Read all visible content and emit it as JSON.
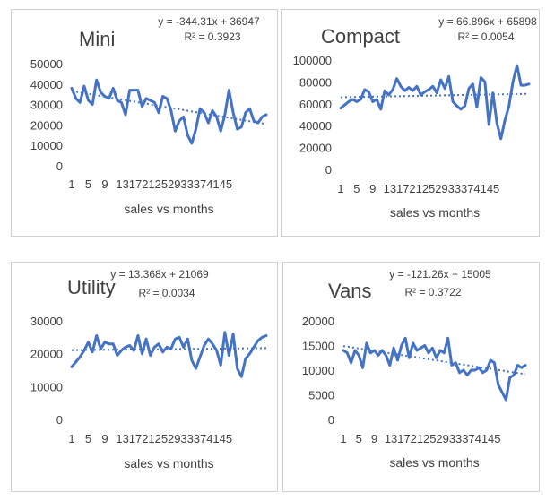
{
  "chart_data": [
    {
      "type": "line",
      "title": "Mini",
      "xlabel": "sales vs months",
      "ylabel": "",
      "ylim": [
        0,
        50000
      ],
      "yticks": [
        "0",
        "10000",
        "20000",
        "30000",
        "40000",
        "50000"
      ],
      "xticks": [
        "1",
        "5",
        "9",
        "13",
        "17",
        "21",
        "25",
        "29",
        "33",
        "37",
        "41",
        "45"
      ],
      "trendline": {
        "type": "linear",
        "style": "dotted",
        "equation": "y = -344.31x + 36947",
        "r2": "R² = 0.3923",
        "slope": -344.31,
        "intercept": 36947
      },
      "grid": false,
      "series": [
        {
          "color": "#4472c4",
          "x": [
            1,
            2,
            3,
            4,
            5,
            6,
            7,
            8,
            9,
            10,
            11,
            12,
            13,
            14,
            15,
            16,
            17,
            18,
            19,
            20,
            21,
            22,
            23,
            24,
            25,
            26,
            27,
            28,
            29,
            30,
            31,
            32,
            33,
            34,
            35,
            36,
            37,
            38,
            39,
            40,
            41,
            42,
            43,
            44,
            45,
            46,
            47,
            48
          ],
          "values": [
            38000,
            33000,
            31000,
            39000,
            32000,
            30000,
            42000,
            36000,
            34000,
            33000,
            38000,
            32000,
            31000,
            25000,
            37000,
            37000,
            37000,
            29000,
            33000,
            32000,
            31000,
            26000,
            34000,
            33000,
            27000,
            17000,
            22000,
            24000,
            15000,
            11000,
            18000,
            28000,
            26000,
            21000,
            27000,
            24000,
            17000,
            25000,
            37000,
            26000,
            18000,
            19000,
            26000,
            28000,
            22000,
            21000,
            24000,
            25000
          ]
        }
      ]
    },
    {
      "type": "line",
      "title": "Compact",
      "xlabel": "sales vs months",
      "ylabel": "",
      "ylim": [
        0,
        100000
      ],
      "yticks": [
        "0",
        "20000",
        "40000",
        "60000",
        "80000",
        "100000"
      ],
      "xticks": [
        "1",
        "5",
        "9",
        "13",
        "17",
        "21",
        "25",
        "29",
        "33",
        "37",
        "41",
        "45"
      ],
      "trendline": {
        "type": "linear",
        "style": "dotted",
        "equation": "y = 66.896x + 65898",
        "r2": "R² = 0.0054",
        "slope": 66.896,
        "intercept": 65898
      },
      "grid": false,
      "series": [
        {
          "color": "#4472c4",
          "x": [
            1,
            2,
            3,
            4,
            5,
            6,
            7,
            8,
            9,
            10,
            11,
            12,
            13,
            14,
            15,
            16,
            17,
            18,
            19,
            20,
            21,
            22,
            23,
            24,
            25,
            26,
            27,
            28,
            29,
            30,
            31,
            32,
            33,
            34,
            35,
            36,
            37,
            38,
            39,
            40,
            41,
            42,
            43,
            44,
            45,
            46,
            47,
            48
          ],
          "values": [
            56000,
            59000,
            62000,
            64000,
            62000,
            64000,
            73000,
            71000,
            62000,
            64000,
            55000,
            72000,
            68000,
            73000,
            83000,
            76000,
            72000,
            75000,
            72000,
            76000,
            68000,
            71000,
            73000,
            76000,
            70000,
            82000,
            74000,
            85000,
            62000,
            58000,
            55000,
            58000,
            74000,
            78000,
            57000,
            84000,
            80000,
            41000,
            70000,
            42000,
            28000,
            45000,
            58000,
            80000,
            95000,
            77000,
            77000,
            78000
          ]
        }
      ]
    },
    {
      "type": "line",
      "title": "Utility",
      "xlabel": "sales  vs months",
      "ylabel": "",
      "ylim": [
        0,
        30000
      ],
      "yticks": [
        "0",
        "10000",
        "20000",
        "30000"
      ],
      "xticks": [
        "1",
        "5",
        "9",
        "13",
        "17",
        "21",
        "25",
        "29",
        "33",
        "37",
        "41",
        "45"
      ],
      "trendline": {
        "type": "linear",
        "style": "dotted",
        "equation": "y = 13.368x + 21069",
        "r2": "R² = 0.0034",
        "slope": 13.368,
        "intercept": 21069
      },
      "grid": false,
      "series": [
        {
          "color": "#4472c4",
          "x": [
            1,
            2,
            3,
            4,
            5,
            6,
            7,
            8,
            9,
            10,
            11,
            12,
            13,
            14,
            15,
            16,
            17,
            18,
            19,
            20,
            21,
            22,
            23,
            24,
            25,
            26,
            27,
            28,
            29,
            30,
            31,
            32,
            33,
            34,
            35,
            36,
            37,
            38,
            39,
            40,
            41,
            42,
            43,
            44,
            45,
            46,
            47,
            48
          ],
          "values": [
            16000,
            17500,
            19000,
            21000,
            23500,
            20500,
            25500,
            21500,
            23500,
            23000,
            23000,
            19500,
            21000,
            22000,
            22500,
            21000,
            25500,
            20000,
            24500,
            19500,
            22000,
            23000,
            20500,
            22000,
            21500,
            24500,
            25000,
            22000,
            24500,
            18000,
            15500,
            19000,
            22500,
            24500,
            23000,
            21000,
            16500,
            26500,
            19500,
            26000,
            15500,
            13000,
            18500,
            20000,
            22000,
            24000,
            25000,
            25500
          ]
        }
      ]
    },
    {
      "type": "line",
      "title": "Vans",
      "xlabel": "sales  vs months",
      "ylabel": "",
      "ylim": [
        0,
        20000
      ],
      "yticks": [
        "0",
        "5000",
        "10000",
        "15000",
        "20000"
      ],
      "xticks": [
        "1",
        "5",
        "9",
        "13",
        "17",
        "21",
        "25",
        "29",
        "33",
        "37",
        "41",
        "45"
      ],
      "trendline": {
        "type": "linear",
        "style": "dotted",
        "equation": "y = -121.26x + 15005",
        "r2": "R² = 0.3722",
        "slope": -121.26,
        "intercept": 15005
      },
      "grid": false,
      "series": [
        {
          "color": "#4472c4",
          "x": [
            1,
            2,
            3,
            4,
            5,
            6,
            7,
            8,
            9,
            10,
            11,
            12,
            13,
            14,
            15,
            16,
            17,
            18,
            19,
            20,
            21,
            22,
            23,
            24,
            25,
            26,
            27,
            28,
            29,
            30,
            31,
            32,
            33,
            34,
            35,
            36,
            37,
            38,
            39,
            40,
            41,
            42,
            43,
            44,
            45,
            46,
            47,
            48
          ],
          "values": [
            14000,
            13500,
            11500,
            14000,
            13000,
            10500,
            15500,
            13500,
            14000,
            13000,
            14000,
            13000,
            11000,
            14500,
            12000,
            15000,
            16500,
            12500,
            15500,
            14000,
            14500,
            15000,
            13500,
            14500,
            12500,
            14000,
            13500,
            16500,
            11000,
            11500,
            9500,
            10000,
            9000,
            10000,
            10000,
            10500,
            9500,
            10000,
            12000,
            11500,
            7000,
            5500,
            4000,
            8500,
            9000,
            11000,
            10500,
            11000
          ]
        }
      ]
    }
  ]
}
